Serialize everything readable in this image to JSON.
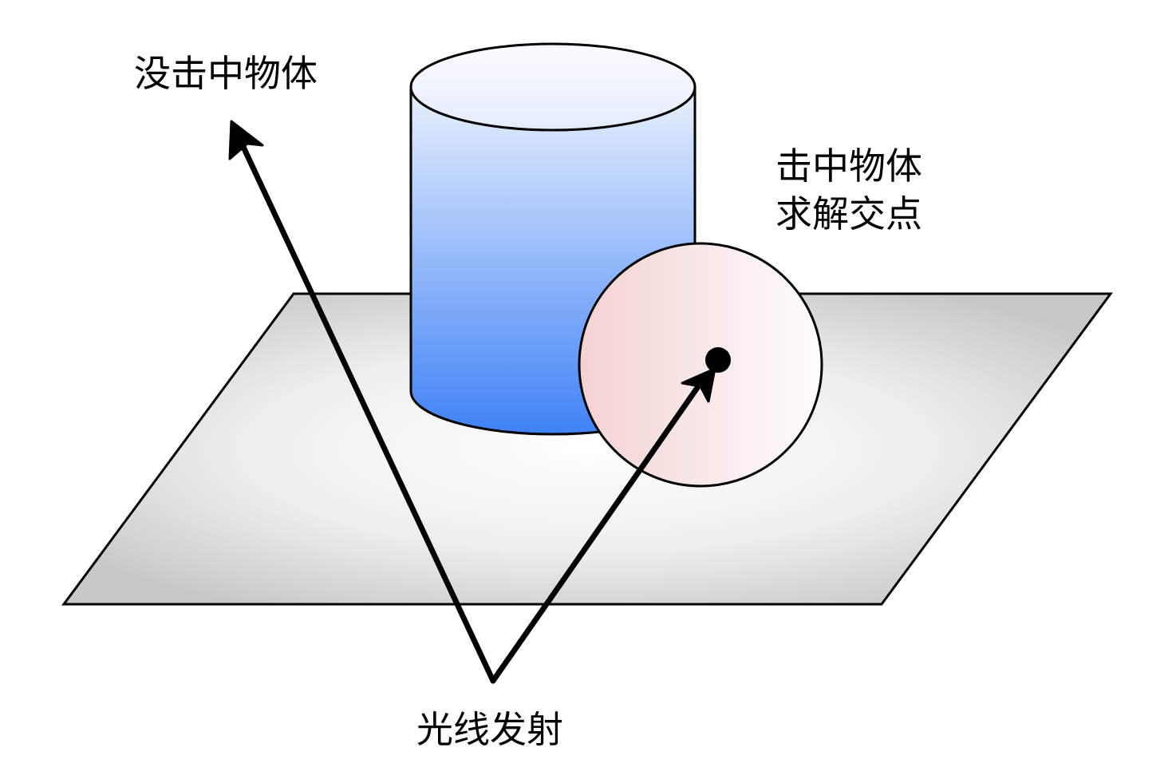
{
  "labels": {
    "miss": "没击中物体",
    "hit_line1": "击中物体",
    "hit_line2": "求解交点",
    "emit": "光线发射"
  },
  "colors": {
    "plane_center": "#ffffff",
    "plane_edge": "#c8c8c8",
    "cylinder_top": "#eaf1fd",
    "cylinder_bottom": "#3f82f6",
    "sphere_left": "#f4d2d2",
    "sphere_right": "#fefdfd",
    "stroke": "#000000"
  }
}
